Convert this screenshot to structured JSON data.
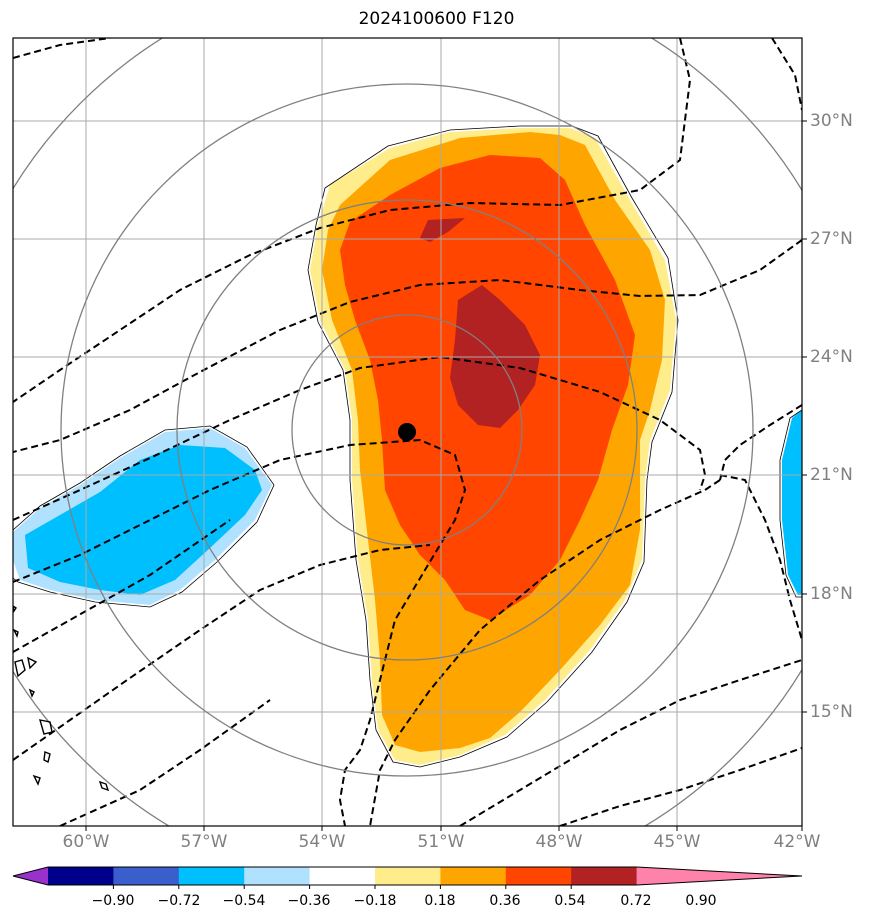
{
  "title": "2024100600 F120",
  "lon_labels": [
    "60°W",
    "57°W",
    "54°W",
    "51°W",
    "48°W",
    "45°W",
    "42°W"
  ],
  "lat_labels": [
    "30°N",
    "27°N",
    "24°N",
    "21°N",
    "18°N",
    "15°N"
  ],
  "colorbar": {
    "levels": [
      "−0.90",
      "−0.72",
      "−0.54",
      "−0.36",
      "−0.18",
      "0.18",
      "0.36",
      "0.54",
      "0.72",
      "0.90"
    ],
    "colors": [
      "#9932cc",
      "#00008b",
      "#3a5fcd",
      "#00bfff",
      "#b0e2ff",
      "#ffffff",
      "#ffec8b",
      "#ffa500",
      "#ff4500",
      "#b22222",
      "#ff82ab"
    ]
  },
  "colors": {
    "grid": "#a9a9a9",
    "range_rings": "#808080",
    "pos_036": "#ffec8b",
    "pos_054": "#ffa500",
    "pos_072": "#ff4500",
    "pos_090": "#b22222",
    "neg_036": "#00bfff",
    "neg_018": "#b0e2ff"
  },
  "storm_center": {
    "lon": "51.8°W",
    "lat": "22.1°N"
  }
}
